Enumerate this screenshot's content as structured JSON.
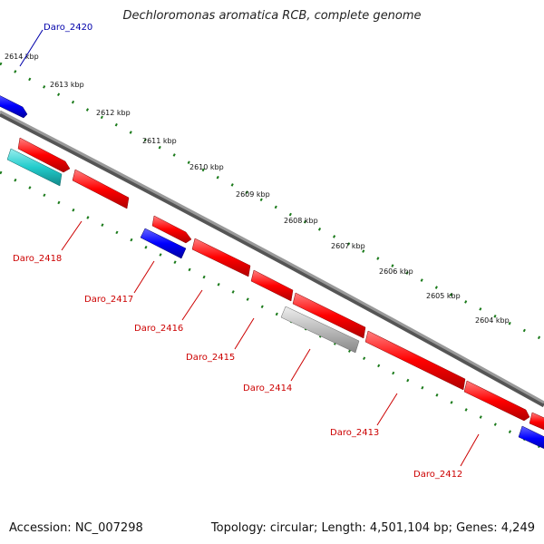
{
  "title": "Dechloromonas aromatica RCB, complete genome",
  "accession": "Accession: NC_007298",
  "summary": "Topology: circular; Length: 4,501,104 bp; Genes: 4,249",
  "kbp_ticks": [
    "2614 kbp",
    "2613 kbp",
    "2612 kbp",
    "2611 kbp",
    "2610 kbp",
    "2609 kbp",
    "2608 kbp",
    "2607 kbp",
    "2606 kbp",
    "2605 kbp",
    "2604 kbp"
  ],
  "gene_labels": [
    "Daro_2420",
    "Daro_2418",
    "Daro_2417",
    "Daro_2416",
    "Daro_2415",
    "Daro_2414",
    "Daro_2413",
    "Daro_2412"
  ],
  "colors": {
    "forward_gene": "#ff0000",
    "reverse_gene_blue": "#0000ff",
    "cyan_gene": "#22cccc",
    "gray_gene": "#bbbbbb",
    "backbone": "#888888",
    "tick_dots": "#1a7a1a",
    "label_red": "#cc0000",
    "label_blue": "#0000aa"
  }
}
